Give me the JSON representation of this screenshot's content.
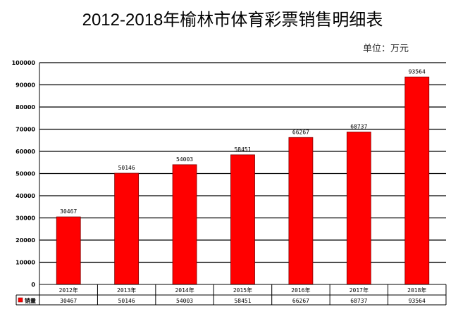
{
  "title": "2012-2018年榆林市体育彩票销售明细表",
  "unit": "单位：万元",
  "colors": {
    "bar": "#ff0000",
    "bar_border": "#800000",
    "grid": "#000000"
  },
  "chart_data": {
    "type": "bar",
    "title": "2012-2018年榆林市体育彩票销售明细表",
    "subtitle": "单位：万元",
    "categories": [
      "2012年",
      "2013年",
      "2014年",
      "2015年",
      "2016年",
      "2017年",
      "2018年"
    ],
    "series": [
      {
        "name": "销量",
        "values": [
          30467,
          50146,
          54003,
          58451,
          66267,
          68737,
          93564
        ]
      }
    ],
    "xlabel": "",
    "ylabel": "",
    "ylim": [
      0,
      100000
    ],
    "yticks": [
      0,
      10000,
      20000,
      30000,
      40000,
      50000,
      60000,
      70000,
      80000,
      90000,
      100000
    ],
    "grid": true,
    "data_labels": true,
    "legend": {
      "entries": [
        "销量"
      ],
      "position": "data-table"
    },
    "data_table": true
  }
}
